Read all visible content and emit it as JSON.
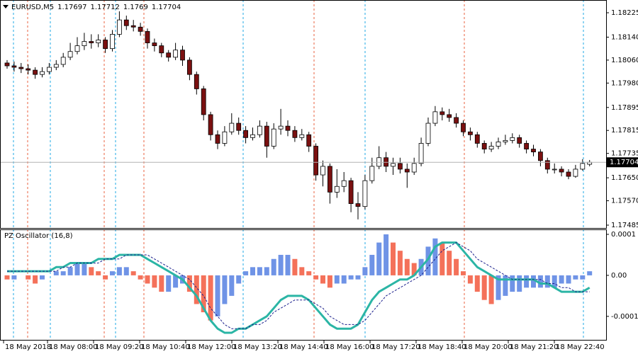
{
  "chart_data": [
    {
      "type": "candlestick",
      "title": "EURUSD,M5",
      "up_color": "#ffffff",
      "down_color": "#7a1010",
      "outline_color": "#000000",
      "ylim": [
        1.17485,
        1.18225
      ],
      "yticks": [
        1.18225,
        {
          "value": 1.1814,
          "label": "1.18140"
        },
        {
          "value": 1.1806,
          "label": "1.18060"
        },
        {
          "value": 1.1798,
          "label": "1.17980"
        },
        1.17895,
        1.17815,
        1.17735,
        {
          "value": 1.1765,
          "label": "1.17650"
        },
        {
          "value": 1.1757,
          "label": "1.17570"
        },
        1.17485
      ],
      "xticks": [
        {
          "value": -0.5,
          "label": "18 May 2018"
        },
        {
          "value": 5.76,
          "label": "18 May 08:00"
        },
        {
          "value": 12.32,
          "label": "18 May 09:20"
        },
        {
          "value": 18.89,
          "label": "18 May 10:40"
        },
        {
          "value": 25.45,
          "label": "18 May 12:00"
        },
        {
          "value": 32.02,
          "label": "18 May 13:20"
        },
        {
          "value": 38.59,
          "label": "18 May 14:40"
        },
        {
          "value": 45.15,
          "label": "18 May 16:00"
        },
        {
          "value": 51.72,
          "label": "18 May 17:20"
        },
        {
          "value": 58.28,
          "label": "18 May 18:40"
        },
        {
          "value": 64.85,
          "label": "18 May 20:00"
        },
        {
          "value": 71.41,
          "label": "18 May 21:20"
        },
        {
          "value": 77.98,
          "label": "18 May 22:40"
        }
      ],
      "last_price_line": true,
      "ohlc": [
        [
          1.1805,
          1.1806,
          1.1803,
          1.1804
        ],
        [
          1.1804,
          1.18055,
          1.1802,
          1.18035
        ],
        [
          1.18035,
          1.1805,
          1.18015,
          1.1803
        ],
        [
          1.1803,
          1.18045,
          1.1801,
          1.18025
        ],
        [
          1.18025,
          1.18035,
          1.17995,
          1.1801
        ],
        [
          1.1801,
          1.18035,
          1.18,
          1.1802
        ],
        [
          1.1802,
          1.1805,
          1.1801,
          1.18035
        ],
        [
          1.18035,
          1.1806,
          1.18025,
          1.18045
        ],
        [
          1.18045,
          1.18085,
          1.18035,
          1.1807
        ],
        [
          1.1807,
          1.1812,
          1.1806,
          1.1809
        ],
        [
          1.1809,
          1.1814,
          1.1808,
          1.1811
        ],
        [
          1.1811,
          1.18155,
          1.18095,
          1.18125
        ],
        [
          1.18125,
          1.1815,
          1.181,
          1.1812
        ],
        [
          1.1812,
          1.1815,
          1.18105,
          1.1813
        ],
        [
          1.1813,
          1.1814,
          1.18085,
          1.181
        ],
        [
          1.181,
          1.18165,
          1.1809,
          1.1815
        ],
        [
          1.1815,
          1.1823,
          1.1814,
          1.182
        ],
        [
          1.182,
          1.18215,
          1.18165,
          1.1818
        ],
        [
          1.1818,
          1.182,
          1.1816,
          1.18175
        ],
        [
          1.18175,
          1.1819,
          1.18145,
          1.1816
        ],
        [
          1.1816,
          1.1817,
          1.181,
          1.1812
        ],
        [
          1.1812,
          1.18135,
          1.1809,
          1.1811
        ],
        [
          1.1811,
          1.1812,
          1.1807,
          1.18085
        ],
        [
          1.18085,
          1.18095,
          1.18055,
          1.1807
        ],
        [
          1.1807,
          1.1812,
          1.1806,
          1.18095
        ],
        [
          1.18095,
          1.1811,
          1.1804,
          1.1806
        ],
        [
          1.1806,
          1.1807,
          1.1799,
          1.1801
        ],
        [
          1.1801,
          1.1802,
          1.1794,
          1.1796
        ],
        [
          1.1796,
          1.1797,
          1.1785,
          1.1787
        ],
        [
          1.1787,
          1.1788,
          1.1778,
          1.178
        ],
        [
          1.178,
          1.17815,
          1.1775,
          1.1777
        ],
        [
          1.1777,
          1.1783,
          1.1776,
          1.1781
        ],
        [
          1.1781,
          1.17875,
          1.178,
          1.1784
        ],
        [
          1.1784,
          1.1786,
          1.178,
          1.17815
        ],
        [
          1.17815,
          1.1783,
          1.1777,
          1.1779
        ],
        [
          1.1779,
          1.17825,
          1.1778,
          1.178
        ],
        [
          1.178,
          1.1785,
          1.1779,
          1.1783
        ],
        [
          1.1783,
          1.17845,
          1.1772,
          1.1776
        ],
        [
          1.1776,
          1.1784,
          1.1775,
          1.1782
        ],
        [
          1.1782,
          1.1789,
          1.178,
          1.1783
        ],
        [
          1.1783,
          1.1785,
          1.17795,
          1.17815
        ],
        [
          1.17815,
          1.1783,
          1.17775,
          1.1779
        ],
        [
          1.1779,
          1.1782,
          1.1778,
          1.178
        ],
        [
          1.178,
          1.1781,
          1.1774,
          1.1776
        ],
        [
          1.1776,
          1.1777,
          1.1764,
          1.1766
        ],
        [
          1.1766,
          1.1771,
          1.1762,
          1.1769
        ],
        [
          1.1769,
          1.177,
          1.1756,
          1.176
        ],
        [
          1.176,
          1.1768,
          1.1758,
          1.1762
        ],
        [
          1.1762,
          1.1767,
          1.176,
          1.1764
        ],
        [
          1.1764,
          1.1765,
          1.1753,
          1.1756
        ],
        [
          1.1756,
          1.176,
          1.17505,
          1.1755
        ],
        [
          1.1755,
          1.1766,
          1.1754,
          1.1764
        ],
        [
          1.1764,
          1.1772,
          1.1763,
          1.1769
        ],
        [
          1.1769,
          1.1776,
          1.1768,
          1.1772
        ],
        [
          1.1772,
          1.1774,
          1.1767,
          1.1769
        ],
        [
          1.1769,
          1.1772,
          1.1766,
          1.177
        ],
        [
          1.177,
          1.1772,
          1.17665,
          1.1768
        ],
        [
          1.1768,
          1.177,
          1.17615,
          1.1767
        ],
        [
          1.1767,
          1.1772,
          1.1766,
          1.177
        ],
        [
          1.177,
          1.1779,
          1.1769,
          1.1777
        ],
        [
          1.1777,
          1.1786,
          1.1776,
          1.1784
        ],
        [
          1.1784,
          1.179,
          1.1783,
          1.1788
        ],
        [
          1.1788,
          1.17895,
          1.1785,
          1.1787
        ],
        [
          1.1787,
          1.1789,
          1.17845,
          1.1786
        ],
        [
          1.1786,
          1.17875,
          1.17825,
          1.1784
        ],
        [
          1.1784,
          1.1785,
          1.17795,
          1.1781
        ],
        [
          1.1781,
          1.17825,
          1.1778,
          1.178
        ],
        [
          1.178,
          1.1781,
          1.17755,
          1.1777
        ],
        [
          1.1777,
          1.1778,
          1.17735,
          1.1775
        ],
        [
          1.1775,
          1.17775,
          1.1774,
          1.1776
        ],
        [
          1.1776,
          1.1779,
          1.1775,
          1.17775
        ],
        [
          1.17775,
          1.178,
          1.17765,
          1.1778
        ],
        [
          1.1778,
          1.17805,
          1.1777,
          1.1779
        ],
        [
          1.1779,
          1.178,
          1.17755,
          1.1777
        ],
        [
          1.1777,
          1.1778,
          1.17735,
          1.1775
        ],
        [
          1.1775,
          1.17765,
          1.17725,
          1.1774
        ],
        [
          1.1774,
          1.1775,
          1.1769,
          1.1771
        ],
        [
          1.1771,
          1.1772,
          1.17665,
          1.1768
        ],
        [
          1.1768,
          1.177,
          1.17665,
          1.1768
        ],
        [
          1.1768,
          1.1769,
          1.17655,
          1.1767
        ],
        [
          1.1767,
          1.1768,
          1.17645,
          1.17655
        ],
        [
          1.17655,
          1.17695,
          1.1765,
          1.1768
        ],
        [
          1.1768,
          1.17715,
          1.17675,
          1.177
        ],
        [
          1.17697,
          1.17712,
          1.1769,
          1.17704
        ]
      ]
    },
    {
      "type": "oscillator",
      "title": "PZ Oscillator (16,8)",
      "ylim": [
        -0.00014,
        0.0001
      ],
      "yticks": [
        0.0001,
        {
          "value": 0,
          "label": "0.00"
        },
        -0.0001
      ],
      "histogram": {
        "up_color": "#6f93e6",
        "down_color": "#f4715a",
        "values": [
          -1e-05,
          -1e-05,
          0,
          -1e-05,
          -2e-05,
          -1e-05,
          0,
          1e-05,
          1e-05,
          2e-05,
          3e-05,
          3e-05,
          2e-05,
          1e-05,
          -1e-05,
          1e-05,
          2e-05,
          2e-05,
          1e-05,
          -1e-05,
          -2e-05,
          -3e-05,
          -4e-05,
          -4e-05,
          -3e-05,
          -2e-05,
          -4e-05,
          -7e-05,
          -9e-05,
          -0.00011,
          -0.0001,
          -7e-05,
          -5e-05,
          -2e-05,
          1e-05,
          2e-05,
          2e-05,
          2e-05,
          4e-05,
          5e-05,
          5e-05,
          4e-05,
          2e-05,
          1e-05,
          -1e-05,
          -2e-05,
          -3e-05,
          -2e-05,
          -2e-05,
          -1e-05,
          -1e-05,
          2e-05,
          5e-05,
          8e-05,
          0.0001,
          8e-05,
          6e-05,
          4e-05,
          3e-05,
          4e-05,
          7e-05,
          9e-05,
          8e-05,
          6e-05,
          4e-05,
          1e-05,
          -2e-05,
          -4e-05,
          -6e-05,
          -7e-05,
          -6e-05,
          -5e-05,
          -4e-05,
          -4e-05,
          -3e-05,
          -3e-05,
          -3e-05,
          -3e-05,
          -3e-05,
          -2e-05,
          -2e-05,
          -1e-05,
          -1e-05,
          1e-05
        ]
      },
      "lines": [
        {
          "color": "#2bb5a5",
          "width": 3,
          "dashed": false,
          "values": [
            1e-05,
            1e-05,
            1e-05,
            1e-05,
            1e-05,
            1e-05,
            1e-05,
            2e-05,
            2e-05,
            3e-05,
            3e-05,
            3e-05,
            3e-05,
            4e-05,
            4e-05,
            4e-05,
            5e-05,
            5e-05,
            5e-05,
            5e-05,
            4e-05,
            3e-05,
            2e-05,
            1e-05,
            0,
            -1e-05,
            -3e-05,
            -5e-05,
            -8e-05,
            -0.00011,
            -0.00013,
            -0.00014,
            -0.00014,
            -0.00013,
            -0.00013,
            -0.00012,
            -0.00011,
            -0.0001,
            -8e-05,
            -6e-05,
            -5e-05,
            -5e-05,
            -5e-05,
            -6e-05,
            -8e-05,
            -0.0001,
            -0.00012,
            -0.00013,
            -0.00013,
            -0.00013,
            -0.00012,
            -9e-05,
            -6e-05,
            -4e-05,
            -3e-05,
            -2e-05,
            -1e-05,
            -1e-05,
            0,
            2e-05,
            4e-05,
            7e-05,
            8e-05,
            8e-05,
            8e-05,
            6e-05,
            4e-05,
            2e-05,
            1e-05,
            0,
            -1e-05,
            -1e-05,
            -1e-05,
            -1e-05,
            -1e-05,
            -1e-05,
            -2e-05,
            -2e-05,
            -3e-05,
            -4e-05,
            -4e-05,
            -4e-05,
            -4e-05,
            -3e-05
          ]
        },
        {
          "color": "#1a1f8c",
          "width": 1,
          "dashed": true,
          "values": [
            1e-05,
            1e-05,
            1e-05,
            1e-05,
            1e-05,
            1e-05,
            1e-05,
            1e-05,
            2e-05,
            2e-05,
            3e-05,
            3e-05,
            3e-05,
            3e-05,
            4e-05,
            4e-05,
            4e-05,
            5e-05,
            5e-05,
            5e-05,
            5e-05,
            4e-05,
            3e-05,
            2e-05,
            1e-05,
            0,
            -1e-05,
            -3e-05,
            -5e-05,
            -8e-05,
            -0.0001,
            -0.00012,
            -0.00013,
            -0.00013,
            -0.00013,
            -0.00012,
            -0.00012,
            -0.00011,
            -9e-05,
            -8e-05,
            -7e-05,
            -6e-05,
            -6e-05,
            -6e-05,
            -7e-05,
            -8e-05,
            -0.0001,
            -0.00011,
            -0.00012,
            -0.00012,
            -0.00012,
            -0.00011,
            -9e-05,
            -7e-05,
            -5e-05,
            -4e-05,
            -3e-05,
            -2e-05,
            -1e-05,
            0,
            2e-05,
            4e-05,
            6e-05,
            7e-05,
            8e-05,
            7e-05,
            6e-05,
            4e-05,
            3e-05,
            2e-05,
            1e-05,
            0,
            -1e-05,
            -1e-05,
            -1e-05,
            -1e-05,
            -1e-05,
            -2e-05,
            -2e-05,
            -3e-05,
            -3e-05,
            -4e-05,
            -4e-05,
            -4e-05
          ]
        }
      ]
    }
  ]
}
